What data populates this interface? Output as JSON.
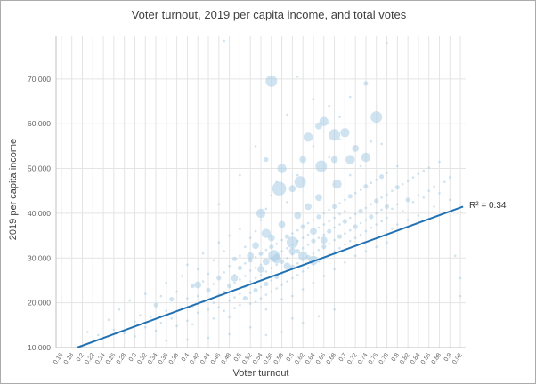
{
  "title": "Voter turnout, 2019 per capita income, and total votes",
  "chart_data": {
    "type": "scatter",
    "title": "Voter turnout, 2019 per capita income, and total votes",
    "xlabel": "Voter turnout",
    "ylabel": "2019 per capita income",
    "r2_label": "R² = 0.34",
    "x_domain": [
      0.15,
      0.93
    ],
    "y_domain": [
      10000,
      79500
    ],
    "x_tick_labels": [
      "0.16",
      "0.18",
      "0.2",
      "0.22",
      "0.24",
      "0.26",
      "0.28",
      "0.3",
      "0.32",
      "0.34",
      "0.36",
      "0.38",
      "0.4",
      "0.42",
      "0.44",
      "0.46",
      "0.48",
      "0.5",
      "0.52",
      "0.54",
      "0.56",
      "0.58",
      "0.6",
      "0.62",
      "0.64",
      "0.66",
      "0.68",
      "0.7",
      "0.72",
      "0.74",
      "0.76",
      "0.78",
      "0.8",
      "0.82",
      "0.84",
      "0.86",
      "0.88",
      "0.9",
      "0.92"
    ],
    "y_ticks": [
      10000,
      20000,
      30000,
      40000,
      50000,
      60000,
      70000
    ],
    "y_tick_labels": [
      "10,000",
      "20,000",
      "30,000",
      "40,000",
      "50,000",
      "60,000",
      "70,000"
    ],
    "grid": true,
    "grid_color": "#e4e4e4",
    "axis_color": "#c0c0c0",
    "point_color": "#a9cce3",
    "trend_color": "#2271b3",
    "trend": {
      "x1": 0.19,
      "y1": 10000,
      "x2": 0.925,
      "y2": 41500
    },
    "legend_position": "none",
    "points": [
      [
        0.21,
        13500,
        1
      ],
      [
        0.23,
        12800,
        1
      ],
      [
        0.25,
        16200,
        1
      ],
      [
        0.26,
        14000,
        1
      ],
      [
        0.27,
        18500,
        1
      ],
      [
        0.28,
        13200,
        1
      ],
      [
        0.29,
        20500,
        1
      ],
      [
        0.3,
        15800,
        1
      ],
      [
        0.3,
        12500,
        1
      ],
      [
        0.31,
        17200,
        1
      ],
      [
        0.32,
        14500,
        1
      ],
      [
        0.32,
        22000,
        1
      ],
      [
        0.33,
        16800,
        1
      ],
      [
        0.34,
        19500,
        2
      ],
      [
        0.34,
        13800,
        1
      ],
      [
        0.35,
        21500,
        1
      ],
      [
        0.35,
        15500,
        1
      ],
      [
        0.36,
        18200,
        1
      ],
      [
        0.36,
        24500,
        1
      ],
      [
        0.37,
        16500,
        1
      ],
      [
        0.37,
        20800,
        2
      ],
      [
        0.38,
        14800,
        1
      ],
      [
        0.38,
        22500,
        1
      ],
      [
        0.39,
        18800,
        1
      ],
      [
        0.39,
        26000,
        1
      ],
      [
        0.4,
        16000,
        1
      ],
      [
        0.4,
        21000,
        1
      ],
      [
        0.4,
        28500,
        1
      ],
      [
        0.41,
        19200,
        1
      ],
      [
        0.41,
        23800,
        2
      ],
      [
        0.41,
        15200,
        1
      ],
      [
        0.42,
        21500,
        1
      ],
      [
        0.42,
        27500,
        1
      ],
      [
        0.42,
        17800,
        1
      ],
      [
        0.42,
        24000,
        3
      ],
      [
        0.43,
        20200,
        1
      ],
      [
        0.43,
        24800,
        1
      ],
      [
        0.43,
        31000,
        1
      ],
      [
        0.44,
        18500,
        1
      ],
      [
        0.44,
        22800,
        2
      ],
      [
        0.44,
        26500,
        1
      ],
      [
        0.45,
        20000,
        1
      ],
      [
        0.45,
        24200,
        1
      ],
      [
        0.45,
        29500,
        1
      ],
      [
        0.45,
        16500,
        1
      ],
      [
        0.46,
        21800,
        1
      ],
      [
        0.46,
        25500,
        2
      ],
      [
        0.46,
        33500,
        1
      ],
      [
        0.46,
        19000,
        1
      ],
      [
        0.47,
        22500,
        1
      ],
      [
        0.47,
        26800,
        1
      ],
      [
        0.47,
        18200,
        1
      ],
      [
        0.47,
        31500,
        1
      ],
      [
        0.47,
        78500,
        1
      ],
      [
        0.48,
        23800,
        2
      ],
      [
        0.48,
        20500,
        1
      ],
      [
        0.48,
        28200,
        1
      ],
      [
        0.48,
        35000,
        1
      ],
      [
        0.48,
        16800,
        1
      ],
      [
        0.49,
        24500,
        1
      ],
      [
        0.49,
        21200,
        1
      ],
      [
        0.49,
        29800,
        2
      ],
      [
        0.49,
        26200,
        1
      ],
      [
        0.49,
        18800,
        1
      ],
      [
        0.5,
        25200,
        1
      ],
      [
        0.5,
        22000,
        1
      ],
      [
        0.5,
        30500,
        1
      ],
      [
        0.5,
        27800,
        2
      ],
      [
        0.5,
        19500,
        1
      ],
      [
        0.5,
        36500,
        1
      ],
      [
        0.51,
        23500,
        1
      ],
      [
        0.51,
        28800,
        1
      ],
      [
        0.51,
        21000,
        2
      ],
      [
        0.51,
        32500,
        1
      ],
      [
        0.51,
        26000,
        1
      ],
      [
        0.52,
        24800,
        1
      ],
      [
        0.52,
        29500,
        2
      ],
      [
        0.52,
        22200,
        1
      ],
      [
        0.52,
        34500,
        1
      ],
      [
        0.52,
        27200,
        1
      ],
      [
        0.52,
        19800,
        1
      ],
      [
        0.53,
        25500,
        1
      ],
      [
        0.53,
        30200,
        1
      ],
      [
        0.53,
        22800,
        2
      ],
      [
        0.53,
        36000,
        1
      ],
      [
        0.53,
        27800,
        1
      ],
      [
        0.53,
        20200,
        1
      ],
      [
        0.54,
        26200,
        1
      ],
      [
        0.54,
        31000,
        2
      ],
      [
        0.54,
        23500,
        1
      ],
      [
        0.54,
        38500,
        1
      ],
      [
        0.54,
        28500,
        1
      ],
      [
        0.54,
        21000,
        1
      ],
      [
        0.55,
        27000,
        1
      ],
      [
        0.55,
        31800,
        1
      ],
      [
        0.55,
        24200,
        2
      ],
      [
        0.55,
        41000,
        1
      ],
      [
        0.55,
        29200,
        3
      ],
      [
        0.55,
        21800,
        1
      ],
      [
        0.55,
        18500,
        1
      ],
      [
        0.56,
        27800,
        1
      ],
      [
        0.56,
        32500,
        2
      ],
      [
        0.56,
        25000,
        1
      ],
      [
        0.56,
        44000,
        1
      ],
      [
        0.56,
        30000,
        1
      ],
      [
        0.56,
        22500,
        1
      ],
      [
        0.56,
        69500,
        5
      ],
      [
        0.57,
        28500,
        1
      ],
      [
        0.57,
        33200,
        1
      ],
      [
        0.57,
        25800,
        2
      ],
      [
        0.57,
        47000,
        1
      ],
      [
        0.57,
        30800,
        1
      ],
      [
        0.57,
        23200,
        1
      ],
      [
        0.58,
        29200,
        2
      ],
      [
        0.58,
        34000,
        1
      ],
      [
        0.58,
        26500,
        1
      ],
      [
        0.58,
        50000,
        4
      ],
      [
        0.58,
        31500,
        1
      ],
      [
        0.58,
        24000,
        1
      ],
      [
        0.58,
        20800,
        1
      ],
      [
        0.59,
        30000,
        1
      ],
      [
        0.59,
        34800,
        2
      ],
      [
        0.59,
        27200,
        1
      ],
      [
        0.59,
        42500,
        1
      ],
      [
        0.59,
        32200,
        1
      ],
      [
        0.59,
        24800,
        1
      ],
      [
        0.6,
        30800,
        1
      ],
      [
        0.6,
        35500,
        1
      ],
      [
        0.6,
        28000,
        2
      ],
      [
        0.6,
        45500,
        3
      ],
      [
        0.6,
        33000,
        1
      ],
      [
        0.6,
        25500,
        1
      ],
      [
        0.6,
        21500,
        1
      ],
      [
        0.61,
        31500,
        2
      ],
      [
        0.61,
        36200,
        1
      ],
      [
        0.61,
        28800,
        1
      ],
      [
        0.61,
        48500,
        1
      ],
      [
        0.61,
        33800,
        1
      ],
      [
        0.61,
        26200,
        1
      ],
      [
        0.62,
        32200,
        1
      ],
      [
        0.62,
        37000,
        2
      ],
      [
        0.62,
        29500,
        1
      ],
      [
        0.62,
        52000,
        3
      ],
      [
        0.62,
        34500,
        1
      ],
      [
        0.62,
        27000,
        1
      ],
      [
        0.62,
        23000,
        1
      ],
      [
        0.63,
        33000,
        1
      ],
      [
        0.63,
        37800,
        1
      ],
      [
        0.63,
        30200,
        2
      ],
      [
        0.63,
        57000,
        4
      ],
      [
        0.63,
        35200,
        1
      ],
      [
        0.63,
        27800,
        1
      ],
      [
        0.64,
        33800,
        2
      ],
      [
        0.64,
        38500,
        1
      ],
      [
        0.64,
        31000,
        1
      ],
      [
        0.64,
        55000,
        1
      ],
      [
        0.64,
        36000,
        3
      ],
      [
        0.64,
        28500,
        1
      ],
      [
        0.64,
        24500,
        1
      ],
      [
        0.65,
        34500,
        1
      ],
      [
        0.65,
        39200,
        2
      ],
      [
        0.65,
        31800,
        1
      ],
      [
        0.65,
        59500,
        3
      ],
      [
        0.65,
        36800,
        1
      ],
      [
        0.65,
        29200,
        1
      ],
      [
        0.66,
        35200,
        1
      ],
      [
        0.66,
        40000,
        1
      ],
      [
        0.66,
        32500,
        2
      ],
      [
        0.66,
        60500,
        4
      ],
      [
        0.66,
        37500,
        1
      ],
      [
        0.66,
        30000,
        1
      ],
      [
        0.66,
        26000,
        1
      ],
      [
        0.67,
        36000,
        2
      ],
      [
        0.67,
        40800,
        1
      ],
      [
        0.67,
        33200,
        1
      ],
      [
        0.67,
        52500,
        1
      ],
      [
        0.67,
        38200,
        1
      ],
      [
        0.67,
        30800,
        1
      ],
      [
        0.68,
        36800,
        1
      ],
      [
        0.68,
        41500,
        2
      ],
      [
        0.68,
        34000,
        1
      ],
      [
        0.68,
        52000,
        3
      ],
      [
        0.68,
        39000,
        1
      ],
      [
        0.68,
        31500,
        1
      ],
      [
        0.68,
        27500,
        1
      ],
      [
        0.69,
        37500,
        1
      ],
      [
        0.69,
        42200,
        1
      ],
      [
        0.69,
        34800,
        2
      ],
      [
        0.69,
        56500,
        1
      ],
      [
        0.69,
        39800,
        1
      ],
      [
        0.69,
        32200,
        1
      ],
      [
        0.7,
        38200,
        2
      ],
      [
        0.7,
        43000,
        1
      ],
      [
        0.7,
        35500,
        1
      ],
      [
        0.7,
        58000,
        4
      ],
      [
        0.7,
        40500,
        1
      ],
      [
        0.7,
        33000,
        1
      ],
      [
        0.7,
        29000,
        1
      ],
      [
        0.71,
        39000,
        1
      ],
      [
        0.71,
        43800,
        2
      ],
      [
        0.71,
        36200,
        1
      ],
      [
        0.71,
        48500,
        1
      ],
      [
        0.71,
        33800,
        1
      ],
      [
        0.72,
        39800,
        1
      ],
      [
        0.72,
        44500,
        1
      ],
      [
        0.72,
        37000,
        2
      ],
      [
        0.72,
        54500,
        3
      ],
      [
        0.72,
        34500,
        1
      ],
      [
        0.72,
        30500,
        1
      ],
      [
        0.73,
        40500,
        2
      ],
      [
        0.73,
        45200,
        1
      ],
      [
        0.73,
        37800,
        1
      ],
      [
        0.73,
        50500,
        1
      ],
      [
        0.73,
        35200,
        1
      ],
      [
        0.74,
        41200,
        1
      ],
      [
        0.74,
        46000,
        2
      ],
      [
        0.74,
        38500,
        1
      ],
      [
        0.74,
        52500,
        4
      ],
      [
        0.74,
        36000,
        1
      ],
      [
        0.74,
        31500,
        1
      ],
      [
        0.75,
        42000,
        1
      ],
      [
        0.75,
        46800,
        1
      ],
      [
        0.75,
        39200,
        2
      ],
      [
        0.75,
        56000,
        1
      ],
      [
        0.75,
        36800,
        1
      ],
      [
        0.76,
        42800,
        2
      ],
      [
        0.76,
        47500,
        1
      ],
      [
        0.76,
        40000,
        1
      ],
      [
        0.76,
        61500,
        5
      ],
      [
        0.76,
        37500,
        1
      ],
      [
        0.76,
        32500,
        1
      ],
      [
        0.77,
        43500,
        1
      ],
      [
        0.77,
        48200,
        2
      ],
      [
        0.77,
        40800,
        1
      ],
      [
        0.77,
        55500,
        1
      ],
      [
        0.77,
        38200,
        1
      ],
      [
        0.78,
        44200,
        1
      ],
      [
        0.78,
        49000,
        1
      ],
      [
        0.78,
        41500,
        2
      ],
      [
        0.78,
        78000,
        1
      ],
      [
        0.78,
        39000,
        1
      ],
      [
        0.78,
        33500,
        1
      ],
      [
        0.79,
        45000,
        1
      ],
      [
        0.79,
        41000,
        1
      ],
      [
        0.79,
        36500,
        1
      ],
      [
        0.8,
        45800,
        2
      ],
      [
        0.8,
        42000,
        1
      ],
      [
        0.8,
        37500,
        1
      ],
      [
        0.8,
        50500,
        1
      ],
      [
        0.81,
        46500,
        1
      ],
      [
        0.81,
        40500,
        1
      ],
      [
        0.82,
        47200,
        1
      ],
      [
        0.82,
        43000,
        2
      ],
      [
        0.82,
        38500,
        1
      ],
      [
        0.83,
        48000,
        1
      ],
      [
        0.83,
        42500,
        1
      ],
      [
        0.84,
        48800,
        1
      ],
      [
        0.84,
        44000,
        1
      ],
      [
        0.84,
        39500,
        1
      ],
      [
        0.85,
        49500,
        1
      ],
      [
        0.85,
        43500,
        1
      ],
      [
        0.86,
        50200,
        1
      ],
      [
        0.86,
        45000,
        1
      ],
      [
        0.87,
        46000,
        1
      ],
      [
        0.87,
        41500,
        1
      ],
      [
        0.88,
        51500,
        1
      ],
      [
        0.88,
        44500,
        1
      ],
      [
        0.89,
        47000,
        1
      ],
      [
        0.9,
        48000,
        1
      ],
      [
        0.9,
        43000,
        1
      ],
      [
        0.91,
        30500,
        1
      ],
      [
        0.92,
        25500,
        1
      ],
      [
        0.92,
        21500,
        1
      ],
      [
        0.52,
        14500,
        1
      ],
      [
        0.58,
        13500,
        1
      ],
      [
        0.62,
        15500,
        1
      ],
      [
        0.55,
        12800,
        1
      ],
      [
        0.65,
        17000,
        1
      ],
      [
        0.6,
        16500,
        1
      ],
      [
        0.68,
        18500,
        1
      ],
      [
        0.48,
        13000,
        1
      ],
      [
        0.44,
        12200,
        1
      ],
      [
        0.4,
        11800,
        1
      ],
      [
        0.36,
        11500,
        1
      ],
      [
        0.53,
        55000,
        1
      ],
      [
        0.5,
        48500,
        1
      ],
      [
        0.46,
        42000,
        1
      ],
      [
        0.55,
        52000,
        2
      ],
      [
        0.59,
        62000,
        1
      ],
      [
        0.64,
        65500,
        1
      ],
      [
        0.67,
        64000,
        1
      ],
      [
        0.71,
        66000,
        1
      ],
      [
        0.61,
        70500,
        1
      ],
      [
        0.74,
        69000,
        2
      ],
      [
        0.69,
        61500,
        1
      ],
      [
        0.52,
        30500,
        3
      ],
      [
        0.56,
        34500,
        3
      ],
      [
        0.54,
        27500,
        3
      ],
      [
        0.6,
        31500,
        3
      ],
      [
        0.63,
        41500,
        3
      ],
      [
        0.58,
        37500,
        3
      ],
      [
        0.66,
        34000,
        3
      ],
      [
        0.49,
        25500,
        3
      ],
      [
        0.57,
        29800,
        4
      ],
      [
        0.62,
        30500,
        4
      ],
      [
        0.59,
        28200,
        3
      ],
      [
        0.61,
        39500,
        3
      ],
      [
        0.65,
        43500,
        3
      ],
      [
        0.55,
        35500,
        4
      ],
      [
        0.53,
        32800,
        3
      ],
      [
        0.575,
        45500,
        6
      ],
      [
        0.615,
        47000,
        5
      ],
      [
        0.655,
        50500,
        5
      ],
      [
        0.685,
        46500,
        4
      ],
      [
        0.71,
        52000,
        4
      ],
      [
        0.54,
        40000,
        4
      ],
      [
        0.68,
        57500,
        5
      ],
      [
        0.565,
        30500,
        5
      ],
      [
        0.6,
        33500,
        5
      ],
      [
        0.64,
        29500,
        4
      ]
    ]
  }
}
